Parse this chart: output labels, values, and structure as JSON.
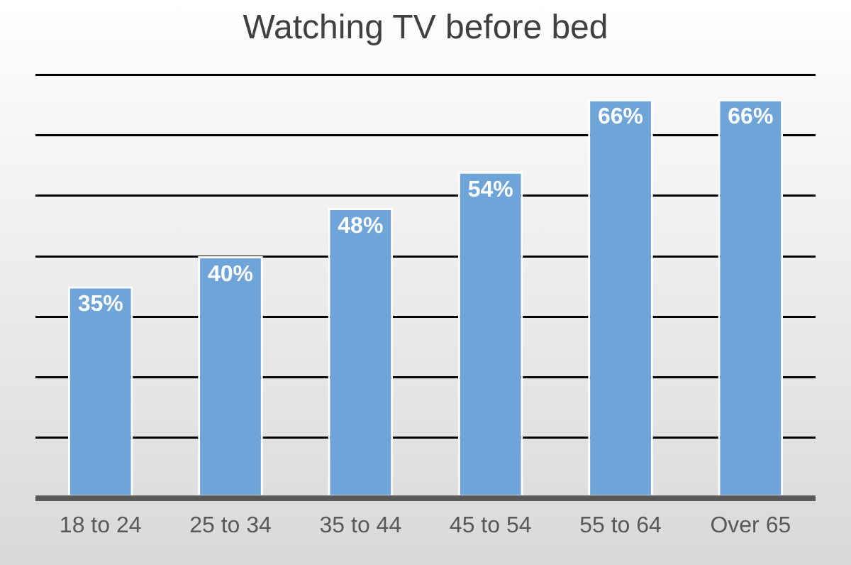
{
  "chart_data": {
    "type": "bar",
    "title": "Watching TV before bed",
    "categories": [
      "18 to 24",
      "25 to 34",
      "35 to 44",
      "45 to 54",
      "55 to 64",
      "Over 65"
    ],
    "values": [
      35,
      40,
      48,
      54,
      66,
      66
    ],
    "value_labels": [
      "35%",
      "40%",
      "48%",
      "54%",
      "66%",
      "66%"
    ],
    "color": "#6fa4d9",
    "ylim": [
      0,
      70
    ],
    "grid": "y",
    "tick_labels": "x",
    "legend": false
  }
}
